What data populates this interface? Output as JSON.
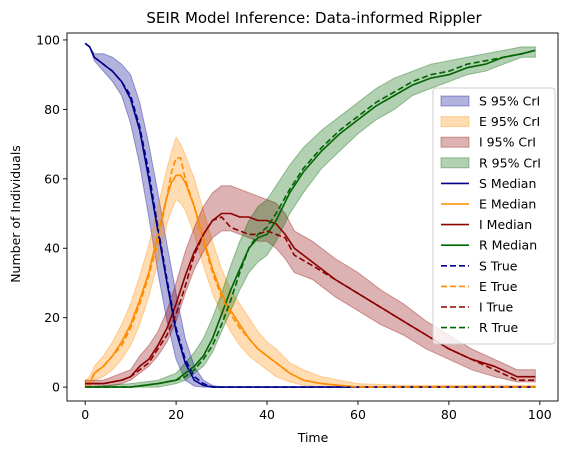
{
  "chart_data": {
    "type": "line",
    "title": "SEIR Model Inference: Data-informed Rippler",
    "xlabel": "Time",
    "ylabel": "Number of Individuals",
    "xlim": [
      -4,
      104
    ],
    "ylim": [
      -4,
      102
    ],
    "xticks": [
      0,
      20,
      40,
      60,
      80,
      100
    ],
    "yticks": [
      0,
      20,
      40,
      60,
      80,
      100
    ],
    "grid": false,
    "legend_position": "right",
    "legend": [
      {
        "label": "S 95% CrI",
        "kind": "band",
        "color": "#00008b"
      },
      {
        "label": "E 95% CrI",
        "kind": "band",
        "color": "#ff8c00"
      },
      {
        "label": "I 95% CrI",
        "kind": "band",
        "color": "#8b0000"
      },
      {
        "label": "R 95% CrI",
        "kind": "band",
        "color": "#006400"
      },
      {
        "label": "S Median",
        "kind": "solid",
        "color": "#00008b"
      },
      {
        "label": "E Median",
        "kind": "solid",
        "color": "#ff8c00"
      },
      {
        "label": "I Median",
        "kind": "solid",
        "color": "#8b0000"
      },
      {
        "label": "R Median",
        "kind": "solid",
        "color": "#006400"
      },
      {
        "label": "S True",
        "kind": "dashed",
        "color": "#00008b"
      },
      {
        "label": "E True",
        "kind": "dashed",
        "color": "#ff8c00"
      },
      {
        "label": "I True",
        "kind": "dashed",
        "color": "#8b0000"
      },
      {
        "label": "R True",
        "kind": "dashed",
        "color": "#006400"
      }
    ],
    "series": [
      {
        "name": "S",
        "color": "#00008b",
        "x": [
          0,
          1,
          2,
          4,
          6,
          8,
          10,
          12,
          14,
          16,
          18,
          20,
          22,
          24,
          26,
          28,
          30,
          40,
          60,
          80,
          99
        ],
        "median": [
          99,
          98,
          95,
          93,
          91,
          88,
          83,
          74,
          60,
          45,
          30,
          16,
          7,
          2,
          0.5,
          0,
          0,
          0,
          0,
          0,
          0
        ],
        "lower": [
          99,
          98,
          94,
          91,
          88,
          84,
          76,
          64,
          49,
          33,
          19,
          8,
          2,
          0.3,
          0,
          0,
          0,
          0,
          0,
          0,
          0
        ],
        "upper": [
          99,
          98,
          96,
          96,
          95,
          93,
          90,
          82,
          70,
          56,
          41,
          27,
          14,
          6,
          2,
          0.5,
          0,
          0,
          0,
          0,
          0
        ],
        "true": [
          99,
          98,
          95,
          93,
          91,
          88,
          84,
          75,
          62,
          46,
          31,
          17,
          8,
          3,
          1,
          0,
          0,
          0,
          0,
          0,
          0
        ]
      },
      {
        "name": "E",
        "color": "#ff8c00",
        "x": [
          0,
          1,
          2,
          4,
          6,
          8,
          10,
          12,
          14,
          16,
          18,
          19,
          20,
          21,
          22,
          24,
          26,
          28,
          30,
          32,
          34,
          36,
          38,
          40,
          42,
          45,
          48,
          52,
          56,
          60,
          70,
          80,
          99
        ],
        "median": [
          1,
          1,
          4,
          6,
          9,
          13,
          18,
          25,
          33,
          44,
          55,
          59,
          61,
          61,
          59,
          52,
          43,
          34,
          27,
          22,
          18,
          14,
          11,
          9,
          7,
          4,
          2,
          1,
          0.5,
          0,
          0,
          0,
          0
        ],
        "lower": [
          0,
          0,
          2,
          3,
          5,
          8,
          12,
          18,
          26,
          36,
          47,
          51,
          54,
          53,
          51,
          44,
          35,
          27,
          21,
          16,
          12,
          9,
          7,
          5,
          3,
          1.5,
          0.5,
          0,
          0,
          0,
          0,
          0,
          0
        ],
        "upper": [
          2,
          3,
          6,
          9,
          13,
          18,
          24,
          32,
          41,
          52,
          63,
          68,
          72,
          70,
          67,
          60,
          51,
          42,
          34,
          28,
          24,
          20,
          16,
          13,
          11,
          7,
          5,
          3,
          2,
          1,
          0.5,
          0.5,
          0.5
        ],
        "true": [
          1,
          1,
          4,
          6,
          9,
          12,
          17,
          24,
          32,
          42,
          55,
          62,
          66,
          66,
          60,
          52,
          42,
          33,
          26,
          21,
          17,
          14,
          11,
          9,
          7,
          4,
          2,
          1,
          0.5,
          0,
          0,
          0,
          0
        ]
      },
      {
        "name": "I",
        "color": "#8b0000",
        "x": [
          0,
          4,
          8,
          10,
          12,
          14,
          16,
          18,
          20,
          22,
          24,
          26,
          28,
          30,
          32,
          34,
          36,
          38,
          40,
          42,
          44,
          46,
          50,
          55,
          60,
          65,
          70,
          75,
          80,
          85,
          90,
          95,
          99
        ],
        "median": [
          1,
          1,
          2,
          3,
          6,
          8,
          12,
          17,
          24,
          32,
          39,
          44,
          48,
          50,
          50,
          49,
          49,
          48,
          48,
          47,
          44,
          40,
          36,
          31,
          27,
          23,
          19,
          15,
          11,
          8,
          6,
          3,
          3
        ],
        "lower": [
          0,
          0,
          1,
          2,
          4,
          6,
          9,
          13,
          19,
          27,
          34,
          39,
          43,
          45,
          45,
          44,
          43,
          42,
          42,
          40,
          37,
          33,
          31,
          26,
          22,
          18,
          15,
          11,
          8,
          5,
          3,
          1.5,
          1.5
        ],
        "upper": [
          2,
          2,
          4,
          5,
          9,
          12,
          16,
          22,
          30,
          39,
          46,
          52,
          56,
          58,
          58,
          57,
          56,
          55,
          54,
          53,
          50,
          45,
          42,
          37,
          33,
          28,
          24,
          19,
          15,
          11,
          8,
          5,
          5
        ],
        "true": [
          1,
          1,
          2,
          3,
          5,
          7,
          11,
          15,
          21,
          29,
          38,
          44,
          48,
          49,
          46,
          45,
          44,
          44,
          45,
          44,
          43,
          38,
          35,
          31,
          27,
          23,
          19,
          15,
          11,
          8,
          5,
          2,
          2
        ]
      },
      {
        "name": "R",
        "color": "#006400",
        "x": [
          0,
          10,
          16,
          20,
          22,
          24,
          26,
          28,
          30,
          32,
          34,
          36,
          38,
          40,
          42,
          45,
          48,
          52,
          56,
          60,
          64,
          68,
          72,
          76,
          80,
          84,
          88,
          92,
          96,
          99
        ],
        "median": [
          0,
          0,
          1,
          2,
          4,
          6,
          9,
          14,
          21,
          28,
          34,
          40,
          43,
          44,
          48,
          56,
          62,
          68,
          73,
          77,
          81,
          84,
          87,
          89,
          90,
          92,
          93,
          95,
          96,
          97
        ],
        "lower": [
          0,
          0,
          0,
          1,
          2,
          4,
          6,
          10,
          16,
          22,
          28,
          33,
          36,
          38,
          42,
          50,
          56,
          63,
          68,
          73,
          77,
          80,
          84,
          86,
          88,
          90,
          91,
          93,
          95,
          95
        ],
        "upper": [
          0,
          1,
          2,
          4,
          7,
          10,
          14,
          20,
          27,
          35,
          42,
          48,
          52,
          54,
          58,
          64,
          69,
          74,
          78,
          82,
          86,
          89,
          91,
          93,
          94,
          95,
          96,
          97,
          98,
          98
        ],
        "true": [
          0,
          0,
          1,
          2,
          3,
          5,
          8,
          12,
          18,
          25,
          33,
          40,
          44,
          46,
          50,
          57,
          63,
          69,
          74,
          78,
          82,
          85,
          88,
          90,
          91,
          93,
          94,
          95,
          96,
          97
        ]
      }
    ]
  }
}
